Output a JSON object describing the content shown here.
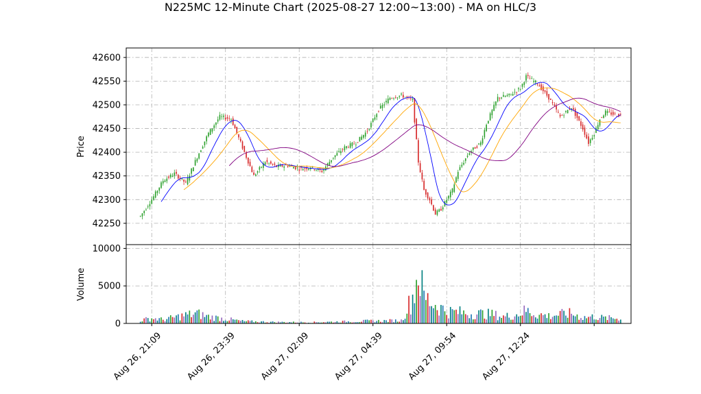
{
  "chart_data": {
    "type": "candlestick",
    "title": "N225MC 12-Minute Chart (2025-08-27 12:00~13:00) - MA on HLC/3",
    "price_panel": {
      "ylabel": "Price",
      "ylim": [
        42205,
        42620
      ],
      "yticks": [
        42250,
        42300,
        42350,
        42400,
        42450,
        42500,
        42550,
        42600
      ]
    },
    "volume_panel": {
      "ylabel": "Volume",
      "ylim": [
        0,
        10500
      ],
      "yticks": [
        0,
        5000,
        10000
      ]
    },
    "x_range": [
      -2.5,
      86.5
    ],
    "xtick_labels": [
      {
        "index": 2,
        "label": "Aug 26, 21:09"
      },
      {
        "index": 15,
        "label": "Aug 26, 23:39"
      },
      {
        "index": 28,
        "label": "Aug 27, 02:09"
      },
      {
        "index": 41,
        "label": "Aug 27, 04:39"
      },
      {
        "index": 54,
        "label": "Aug 27, 09:54"
      },
      {
        "index": 67,
        "label": "Aug 27, 12:24"
      },
      {
        "index": 80,
        "label": ""
      }
    ],
    "price_anchors": [
      [
        0,
        42265
      ],
      [
        2,
        42300
      ],
      [
        4,
        42340
      ],
      [
        6,
        42355
      ],
      [
        8,
        42335
      ],
      [
        10,
        42390
      ],
      [
        12,
        42440
      ],
      [
        14,
        42475
      ],
      [
        16,
        42470
      ],
      [
        18,
        42410
      ],
      [
        20,
        42350
      ],
      [
        22,
        42380
      ],
      [
        24,
        42370
      ],
      [
        26,
        42372
      ],
      [
        28,
        42365
      ],
      [
        30,
        42368
      ],
      [
        32,
        42360
      ],
      [
        34,
        42390
      ],
      [
        36,
        42410
      ],
      [
        38,
        42420
      ],
      [
        40,
        42445
      ],
      [
        42,
        42490
      ],
      [
        44,
        42515
      ],
      [
        46,
        42520
      ],
      [
        48,
        42510
      ],
      [
        49,
        42380
      ],
      [
        50,
        42320
      ],
      [
        51,
        42300
      ],
      [
        52,
        42270
      ],
      [
        53,
        42280
      ],
      [
        54,
        42300
      ],
      [
        55,
        42320
      ],
      [
        56,
        42360
      ],
      [
        58,
        42400
      ],
      [
        60,
        42420
      ],
      [
        61,
        42460
      ],
      [
        63,
        42515
      ],
      [
        65,
        42520
      ],
      [
        67,
        42535
      ],
      [
        68,
        42560
      ],
      [
        70,
        42545
      ],
      [
        72,
        42515
      ],
      [
        74,
        42475
      ],
      [
        76,
        42495
      ],
      [
        78,
        42450
      ],
      [
        79,
        42420
      ],
      [
        80,
        42440
      ],
      [
        81,
        42470
      ],
      [
        82,
        42485
      ],
      [
        84,
        42478
      ]
    ],
    "volume_anchors": [
      [
        0,
        400
      ],
      [
        2,
        700
      ],
      [
        4,
        500
      ],
      [
        6,
        800
      ],
      [
        8,
        1100
      ],
      [
        10,
        1300
      ],
      [
        12,
        900
      ],
      [
        14,
        700
      ],
      [
        16,
        500
      ],
      [
        18,
        300
      ],
      [
        20,
        250
      ],
      [
        24,
        180
      ],
      [
        30,
        150
      ],
      [
        36,
        250
      ],
      [
        40,
        320
      ],
      [
        43,
        350
      ],
      [
        46,
        400
      ],
      [
        48,
        3500
      ],
      [
        49,
        7000
      ],
      [
        50,
        3500
      ],
      [
        52,
        2500
      ],
      [
        54,
        1600
      ],
      [
        56,
        1500
      ],
      [
        58,
        1300
      ],
      [
        60,
        1300
      ],
      [
        62,
        1200
      ],
      [
        64,
        900
      ],
      [
        66,
        1100
      ],
      [
        68,
        1700
      ],
      [
        70,
        1200
      ],
      [
        72,
        1000
      ],
      [
        74,
        1200
      ],
      [
        76,
        1300
      ],
      [
        78,
        800
      ],
      [
        80,
        900
      ],
      [
        82,
        700
      ],
      [
        84,
        700
      ]
    ],
    "moving_averages": [
      {
        "color": "#0000ff",
        "window": 4
      },
      {
        "color": "#ffa500",
        "window": 8
      },
      {
        "color": "#800080",
        "window": 16
      }
    ],
    "colors": {
      "up": "#2ca02c",
      "down": "#d62728",
      "volume": [
        "#1f77b4",
        "#2ca02c",
        "#d62728",
        "#9467bd",
        "#008080"
      ]
    },
    "grid": true
  }
}
